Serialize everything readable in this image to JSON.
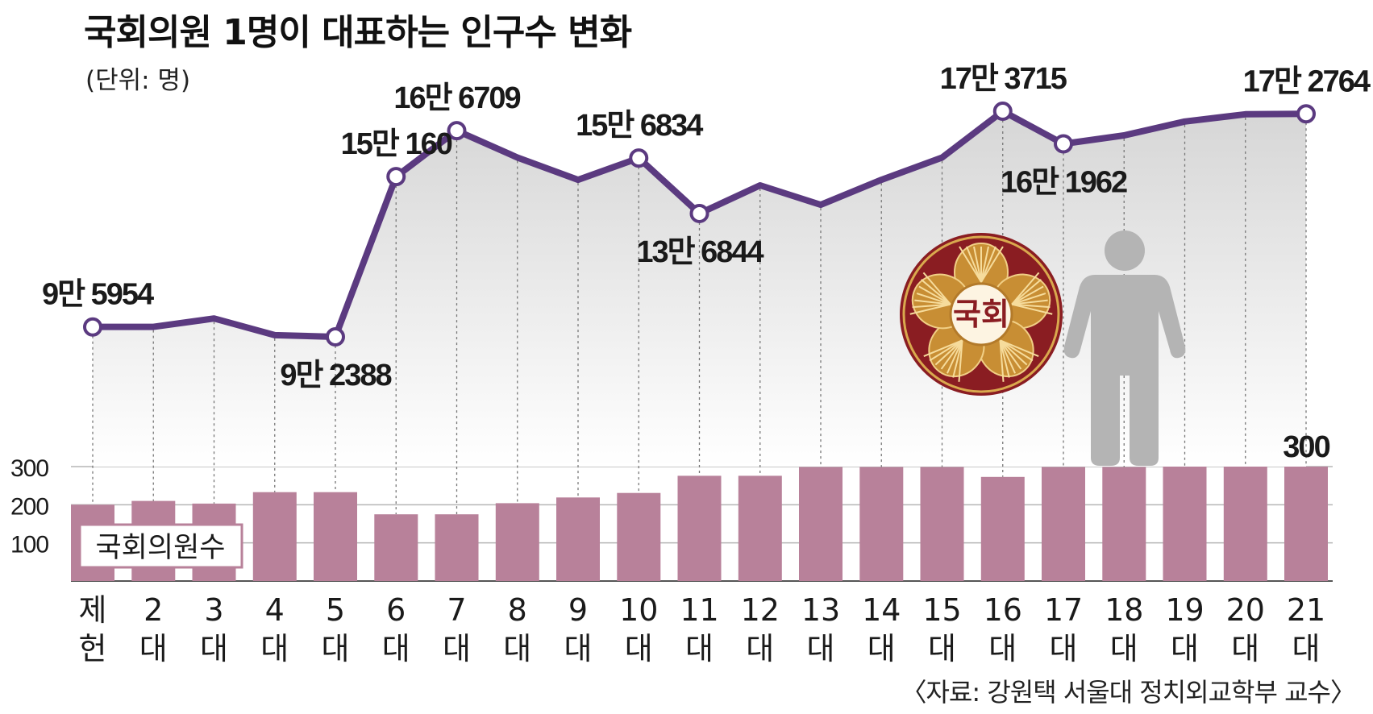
{
  "title": "국회의원 1명이 대표하는 인구수 변화",
  "unit": "(단위: 명)",
  "source": "〈자료: 강원택 서울대 정치외교학부 교수〉",
  "seal_text": "국회",
  "badge": "국회의원수",
  "colors": {
    "line": "#5b3a80",
    "bar": "#b8819a",
    "seal_red": "#8a1d22",
    "seal_gold": "#c88e34",
    "person": "#b4b4b4"
  },
  "icons": [
    "national-assembly-seal-icon",
    "person-icon"
  ],
  "chart_data": [
    {
      "type": "line",
      "categories": [
        "제헌",
        "2대",
        "3대",
        "4대",
        "5대",
        "6대",
        "7대",
        "8대",
        "9대",
        "10대",
        "11대",
        "12대",
        "13대",
        "14대",
        "15대",
        "16대",
        "17대",
        "18대",
        "19대",
        "20대",
        "21대"
      ],
      "series": [
        {
          "values": [
            95954,
            96000,
            99000,
            93000,
            92388,
            150160,
            166709,
            157000,
            149000,
            156834,
            136844,
            147000,
            140000,
            149000,
            157000,
            173715,
            161962,
            165000,
            170000,
            172600,
            172764
          ]
        }
      ],
      "labels": [
        {
          "index": 0,
          "text": "9만 5954",
          "pos": "above"
        },
        {
          "index": 4,
          "text": "9만 2388",
          "pos": "below"
        },
        {
          "index": 5,
          "text": "15만 160",
          "pos": "above"
        },
        {
          "index": 6,
          "text": "16만 6709",
          "pos": "above"
        },
        {
          "index": 9,
          "text": "15만 6834",
          "pos": "above"
        },
        {
          "index": 10,
          "text": "13만 6844",
          "pos": "below"
        },
        {
          "index": 15,
          "text": "17만 3715",
          "pos": "above"
        },
        {
          "index": 16,
          "text": "16만 1962",
          "pos": "below"
        },
        {
          "index": 20,
          "text": "17만 2764",
          "pos": "above"
        }
      ]
    },
    {
      "type": "bar",
      "categories": [
        "제헌",
        "2대",
        "3대",
        "4대",
        "5대",
        "6대",
        "7대",
        "8대",
        "9대",
        "10대",
        "11대",
        "12대",
        "13대",
        "14대",
        "15대",
        "16대",
        "17대",
        "18대",
        "19대",
        "20대",
        "21대"
      ],
      "series": [
        {
          "name": "국회의원수",
          "values": [
            200,
            210,
            203,
            233,
            233,
            175,
            175,
            204,
            219,
            231,
            276,
            276,
            299,
            299,
            299,
            273,
            299,
            299,
            300,
            300,
            300
          ]
        }
      ],
      "yticks": [
        "100",
        "200",
        "300"
      ],
      "ylim": [
        0,
        300
      ],
      "data_label": {
        "index": 20,
        "text": "300"
      },
      "grid": true
    }
  ]
}
